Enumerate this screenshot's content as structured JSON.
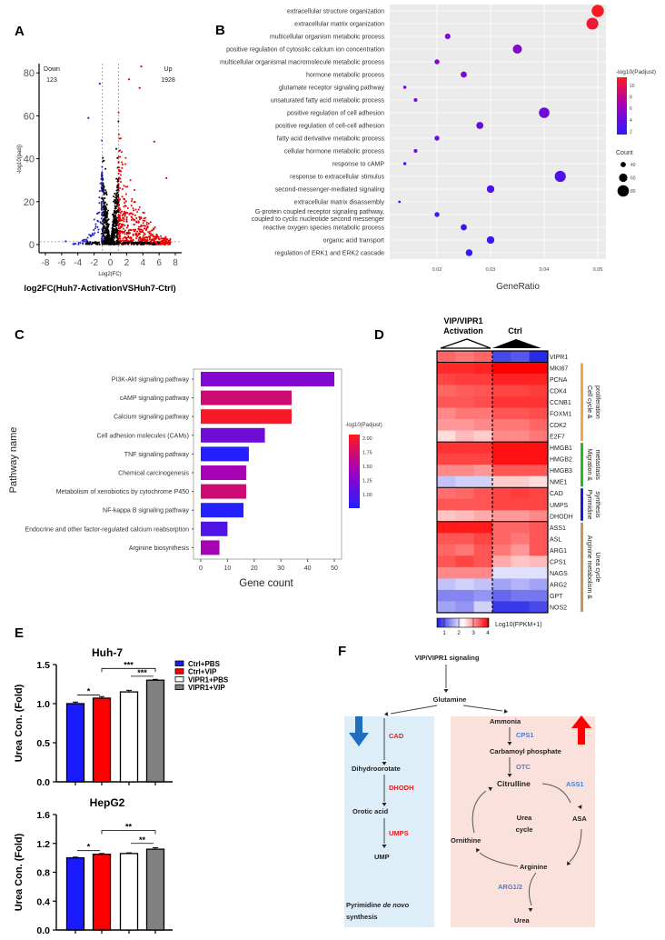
{
  "panels": {
    "A": "A",
    "B": "B",
    "C": "C",
    "D": "D",
    "E": "E",
    "F": "F"
  },
  "chart_data": [
    {
      "id": "A",
      "type": "scatter",
      "subtype": "volcano",
      "xlabel": "Log2(FC)",
      "ylabel": "-log10(padj)",
      "title_below": "log2FC(Huh7-ActivationVSHuh7-Ctrl)",
      "xlim": [
        -8,
        8
      ],
      "ylim": [
        0,
        80
      ],
      "xticks": [
        -8,
        -6,
        -4,
        -2,
        0,
        2,
        4,
        6,
        8
      ],
      "yticks": [
        0,
        20,
        40,
        60,
        80
      ],
      "thresholds": {
        "log2fc": [
          -1,
          1
        ],
        "neg_log10_padj": 1.3
      },
      "annotations": {
        "down_label": "Down",
        "down_count": "123",
        "up_label": "Up",
        "up_count": "1928"
      },
      "colors": {
        "down": "#1f1fd0",
        "up": "#e60000",
        "ns": "#000000"
      }
    },
    {
      "id": "B",
      "type": "scatter",
      "subtype": "bubble",
      "xlabel": "GeneRatio",
      "xticks": [
        0.02,
        0.03,
        0.04,
        0.05
      ],
      "xlim": [
        0.011,
        0.0515
      ],
      "color_legend": {
        "title": "-log10(Padjust)",
        "ticks": [
          10,
          8,
          6,
          4,
          2
        ],
        "range": [
          1.5,
          11
        ],
        "low": "#2b1bff",
        "mid": "#a000c0",
        "high": "#ff1a1a"
      },
      "size_legend": {
        "title": "Count",
        "values": [
          40,
          60,
          80
        ]
      },
      "terms": [
        {
          "label": "extracellular structure organization",
          "ratio": 0.05,
          "padj": 10.8,
          "count": 85
        },
        {
          "label": "extracellular matrix organization",
          "ratio": 0.049,
          "padj": 10.2,
          "count": 83
        },
        {
          "label": "multicellular organism metabolic process",
          "ratio": 0.022,
          "padj": 5.0,
          "count": 42
        },
        {
          "label": "positive regulation of cytosolic calcium ion concentration",
          "ratio": 0.035,
          "padj": 5.0,
          "count": 65
        },
        {
          "label": "multicellular organismal macromolecule metabolic process",
          "ratio": 0.02,
          "padj": 5.0,
          "count": 38
        },
        {
          "label": "hormone metabolic process",
          "ratio": 0.025,
          "padj": 4.8,
          "count": 46
        },
        {
          "label": "glutamate receptor signaling pathway",
          "ratio": 0.014,
          "padj": 4.5,
          "count": 27
        },
        {
          "label": "unsaturated fatty acid metabolic process",
          "ratio": 0.016,
          "padj": 4.4,
          "count": 30
        },
        {
          "label": "positive regulation of cell adhesion",
          "ratio": 0.04,
          "padj": 4.2,
          "count": 74
        },
        {
          "label": "positive regulation of cell-cell adhesion",
          "ratio": 0.028,
          "padj": 4.0,
          "count": 52
        },
        {
          "label": "fatty acid derivative metabolic process",
          "ratio": 0.02,
          "padj": 4.0,
          "count": 38
        },
        {
          "label": "cellular hormone metabolic process",
          "ratio": 0.016,
          "padj": 3.8,
          "count": 30
        },
        {
          "label": "response to cAMP",
          "ratio": 0.014,
          "padj": 3.0,
          "count": 26
        },
        {
          "label": "response to extracellular stimulus",
          "ratio": 0.043,
          "padj": 3.0,
          "count": 78
        },
        {
          "label": "second-messenger-mediated signaling",
          "ratio": 0.03,
          "padj": 2.8,
          "count": 55
        },
        {
          "label": "extracellular matrix disassembly",
          "ratio": 0.013,
          "padj": 2.8,
          "count": 22
        },
        {
          "label": "G-protein coupled receptor signaling pathway, coupled to cyclic nucleotide second messenger",
          "ratio": 0.02,
          "padj": 2.4,
          "count": 38
        },
        {
          "label": "reactive oxygen species metabolic process",
          "ratio": 0.025,
          "padj": 2.2,
          "count": 46
        },
        {
          "label": "organic acid transport",
          "ratio": 0.03,
          "padj": 2.0,
          "count": 55
        },
        {
          "label": "regulation of ERK1 and ERK2 cascade",
          "ratio": 0.026,
          "padj": 1.8,
          "count": 50
        }
      ]
    },
    {
      "id": "C",
      "type": "bar",
      "orientation": "horizontal",
      "xlabel": "Gene count",
      "ylabel": "Pathway name",
      "xlim": [
        0,
        52
      ],
      "xticks": [
        0,
        10,
        20,
        30,
        40,
        50
      ],
      "color_legend": {
        "title": "-log10(Padjust)",
        "ticks": [
          "2.00",
          "1.75",
          "1.50",
          "1.25",
          "1.00"
        ],
        "range": [
          0.8,
          2.1
        ],
        "low": "#2020ff",
        "high": "#ff1a1a"
      },
      "categories": [
        "PI3K-Akt signaling pathway",
        "cAMP signaling pathway",
        "Calcium signaling pathway",
        "Cell adhesion molecules (CAMs)",
        "TNF signaling pathway",
        "Chemical carcinogenesis",
        "Metabolism of xenobiotics by cytochrome P450",
        "NF-kappa B signaling pathway",
        "Endocrine and other factor-regulated calcium reabsorption",
        "Arginine biosynthesis"
      ],
      "values": [
        50,
        34,
        34,
        24,
        18,
        17,
        17,
        16,
        10,
        7
      ],
      "padj": [
        1.3,
        1.75,
        2.05,
        1.2,
        0.82,
        1.5,
        1.75,
        0.82,
        1.05,
        1.5
      ]
    },
    {
      "id": "D",
      "type": "heatmap",
      "column_groups": [
        {
          "label_line1": "VIP/VIPR1",
          "label_line2": "Activation",
          "n": 3
        },
        {
          "label": "Ctrl",
          "n": 3
        }
      ],
      "scale_label": "Log10(FPKM+1)",
      "scale_ticks": [
        "1",
        "2",
        "3",
        "4"
      ],
      "scale_range": [
        1,
        4
      ],
      "colors": {
        "low": "#1a1ae6",
        "mid": "#ffffff",
        "high": "#ff0000"
      },
      "rows": [
        {
          "gene": "VIPR1",
          "values": [
            3.4,
            3.3,
            3.4,
            1.3,
            1.4,
            1.1
          ]
        },
        {
          "gene": "MKI67",
          "values": [
            3.75,
            3.75,
            3.8,
            4.0,
            4.0,
            4.0
          ]
        },
        {
          "gene": "PCNA",
          "values": [
            3.6,
            3.65,
            3.65,
            3.8,
            3.8,
            3.8
          ]
        },
        {
          "gene": "CDK4",
          "values": [
            3.4,
            3.45,
            3.5,
            3.6,
            3.6,
            3.65
          ]
        },
        {
          "gene": "CCNB1",
          "values": [
            3.5,
            3.5,
            3.55,
            3.7,
            3.7,
            3.7
          ]
        },
        {
          "gene": "FOXM1",
          "values": [
            3.2,
            3.3,
            3.3,
            3.5,
            3.5,
            3.55
          ]
        },
        {
          "gene": "CDK2",
          "values": [
            3.1,
            3.1,
            3.2,
            3.3,
            3.3,
            3.4
          ]
        },
        {
          "gene": "E2F7",
          "values": [
            2.7,
            2.9,
            2.8,
            3.2,
            3.2,
            3.3
          ]
        },
        {
          "gene": "HMGB1",
          "values": [
            3.7,
            3.7,
            3.7,
            3.9,
            3.9,
            3.9
          ]
        },
        {
          "gene": "HMGB2",
          "values": [
            3.6,
            3.6,
            3.6,
            3.9,
            3.9,
            3.9
          ]
        },
        {
          "gene": "HMGB3",
          "values": [
            3.2,
            3.2,
            3.1,
            3.5,
            3.5,
            3.5
          ]
        },
        {
          "gene": "NME1",
          "values": [
            2.1,
            2.2,
            2.2,
            2.8,
            2.8,
            2.7
          ]
        },
        {
          "gene": "CAD",
          "values": [
            3.35,
            3.4,
            3.5,
            3.6,
            3.65,
            3.6
          ]
        },
        {
          "gene": "UMPS",
          "values": [
            3.5,
            3.5,
            3.5,
            3.6,
            3.6,
            3.6
          ]
        },
        {
          "gene": "DHODH",
          "values": [
            2.85,
            2.9,
            3.0,
            3.1,
            3.1,
            3.2
          ]
        },
        {
          "gene": "ASS1",
          "values": [
            3.85,
            3.85,
            3.85,
            3.4,
            3.4,
            3.5
          ]
        },
        {
          "gene": "ASL",
          "values": [
            3.5,
            3.5,
            3.6,
            3.4,
            3.3,
            3.5
          ]
        },
        {
          "gene": "ARG1",
          "values": [
            3.4,
            3.3,
            3.5,
            3.3,
            3.1,
            3.5
          ]
        },
        {
          "gene": "CPS1",
          "values": [
            3.5,
            3.6,
            3.5,
            3.0,
            2.85,
            2.9
          ]
        },
        {
          "gene": "NAGS",
          "values": [
            3.2,
            3.2,
            3.2,
            2.3,
            2.3,
            2.3
          ]
        },
        {
          "gene": "ARG2",
          "values": [
            2.1,
            2.2,
            2.1,
            1.9,
            2.0,
            1.9
          ]
        },
        {
          "gene": "GPT",
          "values": [
            1.7,
            1.7,
            1.8,
            1.5,
            1.6,
            1.6
          ]
        },
        {
          "gene": "NOS2",
          "values": [
            1.9,
            1.8,
            2.2,
            1.2,
            1.2,
            1.3
          ]
        }
      ],
      "row_groups": [
        {
          "label_line1": "Cell cycle &",
          "label_line2": "proliferation",
          "from": 1,
          "to": 7,
          "color": "#f5a347"
        },
        {
          "label_line1": "Migration &",
          "label_line2": "metastasis",
          "from": 8,
          "to": 11,
          "color": "#1fbf1f"
        },
        {
          "label_line1": "Pyrimidine",
          "label_line2": "synthesis",
          "from": 12,
          "to": 14,
          "color": "#1a1ae0"
        },
        {
          "label_line1": "Arginine metabolism &",
          "label_line2": "Urea cycle",
          "from": 15,
          "to": 22,
          "color": "#c8955a"
        }
      ]
    },
    {
      "id": "E1",
      "type": "bar",
      "title": "Huh-7",
      "ylabel": "Urea Con. (Fold)",
      "ylim": [
        0,
        1.5
      ],
      "yticks": [
        "0.0",
        "0.5",
        "1.0",
        "1.5"
      ],
      "series": [
        {
          "name": "Ctrl+PBS",
          "value": 1.0,
          "error": 0.02,
          "color": "#1a1aff"
        },
        {
          "name": "Ctrl+VIP",
          "value": 1.07,
          "error": 0.02,
          "color": "#ff0000"
        },
        {
          "name": "VIPR1+PBS",
          "value": 1.15,
          "error": 0.02,
          "color": "#ffffff"
        },
        {
          "name": "VIPR1+VIP",
          "value": 1.3,
          "error": 0.01,
          "color": "#808080"
        }
      ],
      "significance": [
        {
          "from": 0,
          "to": 1,
          "label": "*"
        },
        {
          "from": 1,
          "to": 3,
          "label": "***"
        },
        {
          "from": 2,
          "to": 3,
          "label": "***"
        }
      ],
      "legend": "right"
    },
    {
      "id": "E2",
      "type": "bar",
      "title": "HepG2",
      "ylabel": "Urea Con. (Fold)",
      "ylim": [
        0,
        1.6
      ],
      "yticks": [
        "0.0",
        "0.4",
        "0.8",
        "1.2",
        "1.6"
      ],
      "series": [
        {
          "name": "Ctrl+PBS",
          "value": 1.0,
          "error": 0.01,
          "color": "#1a1aff"
        },
        {
          "name": "Ctrl+VIP",
          "value": 1.05,
          "error": 0.01,
          "color": "#ff0000"
        },
        {
          "name": "VIPR1+PBS",
          "value": 1.06,
          "error": 0.01,
          "color": "#ffffff"
        },
        {
          "name": "VIPR1+VIP",
          "value": 1.12,
          "error": 0.02,
          "color": "#808080"
        }
      ],
      "significance": [
        {
          "from": 0,
          "to": 1,
          "label": "*"
        },
        {
          "from": 1,
          "to": 3,
          "label": "**"
        },
        {
          "from": 2,
          "to": 3,
          "label": "**"
        }
      ]
    }
  ],
  "diagram_F": {
    "top": "VIP/VIPR1 signaling",
    "glutamine": "Glutamine",
    "left": {
      "nodes": [
        "Dihydroorotate",
        "Orotic acid",
        "UMP"
      ],
      "enzymes": [
        "CAD",
        "DHODH",
        "UMPS"
      ],
      "caption_1": "Pyrimidine ",
      "caption_italic": "de novo",
      "caption_2": "synthesis",
      "trend": "down",
      "bg": "#ddeef9",
      "enzyme_color": "#e02020",
      "arrow_color": "#1f6fc0"
    },
    "right": {
      "ammonia": "Ammonia",
      "carbamoyl": "Carbamoyl phosphate",
      "citrulline": "Citrulline",
      "asa": "ASA",
      "arginine": "Arginine",
      "ornithine": "Ornithine",
      "urea": "Urea",
      "cycle_1": "Urea",
      "cycle_2": "cycle",
      "enzymes": {
        "cps1": "CPS1",
        "otc": "OTC",
        "ass1": "ASS1",
        "arg": "ARG1/2"
      },
      "trend": "up",
      "bg": "#fbe1db",
      "enzyme_color": "#4a7fd0",
      "arrow_color": "#ff0000"
    }
  }
}
